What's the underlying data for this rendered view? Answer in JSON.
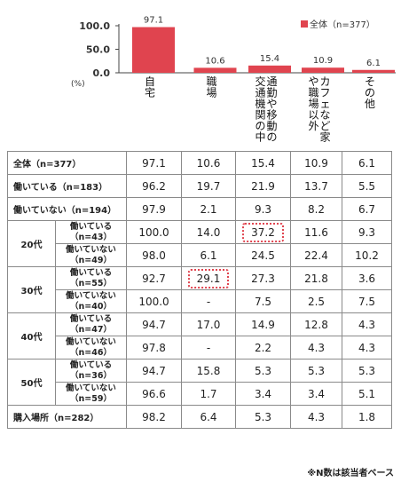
{
  "chart_data": {
    "type": "bar",
    "categories": [
      "自宅",
      "職場",
      "通勤や移動の交通機関の中",
      "カフェなど家や職場以外",
      "その他"
    ],
    "series": [
      {
        "name": "全体（n=377）",
        "values": [
          97.1,
          10.6,
          15.4,
          10.9,
          6.1
        ]
      }
    ],
    "unit": "(%)",
    "yticks": [
      "100.0",
      "50.0",
      "0.0"
    ],
    "ylim": [
      0,
      100
    ],
    "grid": false,
    "legend": "top-right",
    "bar_color": "#e0444f"
  },
  "table": {
    "rows": [
      {
        "label": "全体（n=377）",
        "values": [
          "97.1",
          "10.6",
          "15.4",
          "10.9",
          "6.1"
        ]
      },
      {
        "label": "働いている（n=183）",
        "values": [
          "96.2",
          "19.7",
          "21.9",
          "13.7",
          "5.5"
        ]
      },
      {
        "label": "働いていない（n=194）",
        "values": [
          "97.9",
          "2.1",
          "9.3",
          "8.2",
          "6.7"
        ]
      },
      {
        "group": "20代",
        "rows": [
          {
            "label1": "働いている",
            "label2": "（n=43）",
            "values": [
              "100.0",
              "14.0",
              "37.2",
              "11.6",
              "9.3"
            ],
            "highlight": 2
          },
          {
            "label1": "働いていない",
            "label2": "（n=49）",
            "values": [
              "98.0",
              "6.1",
              "24.5",
              "22.4",
              "10.2"
            ]
          }
        ]
      },
      {
        "group": "30代",
        "rows": [
          {
            "label1": "働いている",
            "label2": "（n=55）",
            "values": [
              "92.7",
              "29.1",
              "27.3",
              "21.8",
              "3.6"
            ],
            "highlight": 1
          },
          {
            "label1": "働いていない",
            "label2": "（n=40）",
            "values": [
              "100.0",
              "-",
              "7.5",
              "2.5",
              "7.5"
            ]
          }
        ]
      },
      {
        "group": "40代",
        "rows": [
          {
            "label1": "働いている",
            "label2": "（n=47）",
            "values": [
              "94.7",
              "17.0",
              "14.9",
              "12.8",
              "4.3"
            ]
          },
          {
            "label1": "働いていない",
            "label2": "（n=46）",
            "values": [
              "97.8",
              "-",
              "2.2",
              "4.3",
              "4.3"
            ]
          }
        ]
      },
      {
        "group": "50代",
        "rows": [
          {
            "label1": "働いている",
            "label2": "（n=36）",
            "values": [
              "94.7",
              "15.8",
              "5.3",
              "5.3",
              "5.3"
            ]
          },
          {
            "label1": "働いていない",
            "label2": "（n=59）",
            "values": [
              "96.6",
              "1.7",
              "3.4",
              "3.4",
              "5.1"
            ]
          }
        ]
      },
      {
        "label": "購入場所（n=282）",
        "values": [
          "98.2",
          "6.4",
          "5.3",
          "4.3",
          "1.8"
        ]
      }
    ]
  },
  "note": "※N数は該当者ベース"
}
